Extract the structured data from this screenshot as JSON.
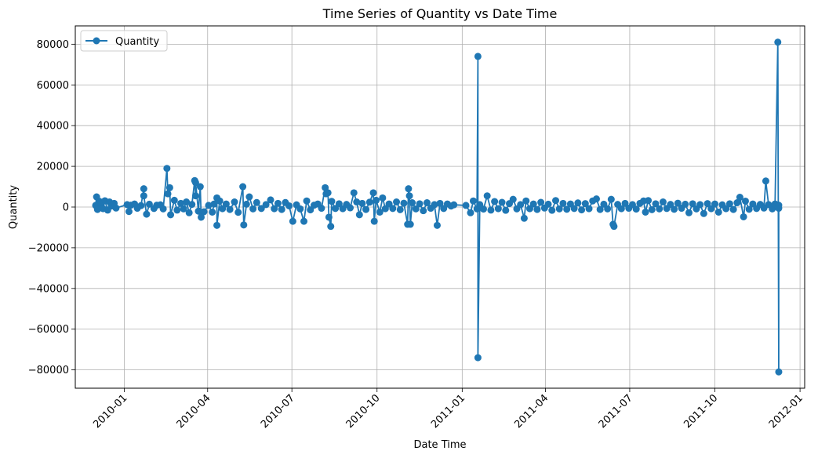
{
  "chart_data": {
    "type": "line",
    "title": "Time Series of Quantity vs Date Time",
    "xlabel": "Date Time",
    "ylabel": "Quantity",
    "x_tick_labels": [
      "2010-01",
      "2010-04",
      "2010-07",
      "2010-10",
      "2011-01",
      "2011-04",
      "2011-07",
      "2011-10",
      "2012-01"
    ],
    "y_tick_labels": [
      "−80000",
      "−60000",
      "−40000",
      "−20000",
      "0",
      "20000",
      "40000",
      "60000",
      "80000"
    ],
    "y_ticks": [
      -80000,
      -60000,
      -40000,
      -20000,
      0,
      20000,
      40000,
      60000,
      80000
    ],
    "xlim": [
      "2009-11-09",
      "2012-01-06"
    ],
    "ylim": [
      -89000,
      89000
    ],
    "grid": true,
    "legend_position": "top-left",
    "color": "#1f77b4",
    "series": [
      {
        "name": "Quantity",
        "marker": "circle",
        "points": [
          [
            "2009-12-01",
            800
          ],
          [
            "2009-12-02",
            5000
          ],
          [
            "2009-12-03",
            -1200
          ],
          [
            "2009-12-05",
            2800
          ],
          [
            "2009-12-07",
            1500
          ],
          [
            "2009-12-09",
            -800
          ],
          [
            "2009-12-11",
            3100
          ],
          [
            "2009-12-14",
            -1500
          ],
          [
            "2009-12-16",
            2500
          ],
          [
            "2009-12-18",
            500
          ],
          [
            "2009-12-21",
            1800
          ],
          [
            "2009-12-23",
            -500
          ],
          [
            "2010-01-04",
            1200
          ],
          [
            "2010-01-06",
            -2200
          ],
          [
            "2010-01-08",
            900
          ],
          [
            "2010-01-12",
            1500
          ],
          [
            "2010-01-15",
            -600
          ],
          [
            "2010-01-19",
            700
          ],
          [
            "2010-01-22",
            9000
          ],
          [
            "2010-01-22",
            5500
          ],
          [
            "2010-01-25",
            -3500
          ],
          [
            "2010-01-28",
            1400
          ],
          [
            "2010-02-02",
            -700
          ],
          [
            "2010-02-05",
            900
          ],
          [
            "2010-02-09",
            1100
          ],
          [
            "2010-02-12",
            -900
          ],
          [
            "2010-02-16",
            19000
          ],
          [
            "2010-02-17",
            6500
          ],
          [
            "2010-02-19",
            9500
          ],
          [
            "2010-02-20",
            -3800
          ],
          [
            "2010-02-24",
            3300
          ],
          [
            "2010-02-27",
            -1500
          ],
          [
            "2010-03-03",
            1800
          ],
          [
            "2010-03-06",
            -900
          ],
          [
            "2010-03-09",
            2500
          ],
          [
            "2010-03-12",
            -2800
          ],
          [
            "2010-03-15",
            1300
          ],
          [
            "2010-03-18",
            13000
          ],
          [
            "2010-03-19",
            5500
          ],
          [
            "2010-03-19",
            12000
          ],
          [
            "2010-03-22",
            -2000
          ],
          [
            "2010-03-24",
            10000
          ],
          [
            "2010-03-25",
            -5000
          ],
          [
            "2010-03-28",
            -2300
          ],
          [
            "2010-04-02",
            800
          ],
          [
            "2010-04-06",
            -2500
          ],
          [
            "2010-04-08",
            1500
          ],
          [
            "2010-04-11",
            4500
          ],
          [
            "2010-04-11",
            -9000
          ],
          [
            "2010-04-14",
            3000
          ],
          [
            "2010-04-17",
            -800
          ],
          [
            "2010-04-21",
            1500
          ],
          [
            "2010-04-25",
            -1200
          ],
          [
            "2010-04-30",
            2500
          ],
          [
            "2010-05-04",
            -2600
          ],
          [
            "2010-05-09",
            10000
          ],
          [
            "2010-05-10",
            -8800
          ],
          [
            "2010-05-13",
            1400
          ],
          [
            "2010-05-16",
            5000
          ],
          [
            "2010-05-20",
            -900
          ],
          [
            "2010-05-24",
            2200
          ],
          [
            "2010-05-29",
            -700
          ],
          [
            "2010-06-03",
            1200
          ],
          [
            "2010-06-08",
            3500
          ],
          [
            "2010-06-12",
            -800
          ],
          [
            "2010-06-16",
            1800
          ],
          [
            "2010-06-20",
            -1200
          ],
          [
            "2010-06-24",
            2200
          ],
          [
            "2010-06-28",
            600
          ],
          [
            "2010-07-02",
            -7000
          ],
          [
            "2010-07-06",
            1100
          ],
          [
            "2010-07-10",
            -900
          ],
          [
            "2010-07-14",
            -7000
          ],
          [
            "2010-07-17",
            3000
          ],
          [
            "2010-07-21",
            -1400
          ],
          [
            "2010-07-25",
            900
          ],
          [
            "2010-07-29",
            1500
          ],
          [
            "2010-08-02",
            -600
          ],
          [
            "2010-08-06",
            9500
          ],
          [
            "2010-08-07",
            6500
          ],
          [
            "2010-08-09",
            7000
          ],
          [
            "2010-08-10",
            -5000
          ],
          [
            "2010-08-12",
            -9500
          ],
          [
            "2010-08-13",
            2800
          ],
          [
            "2010-08-17",
            -700
          ],
          [
            "2010-08-21",
            1600
          ],
          [
            "2010-08-25",
            -800
          ],
          [
            "2010-08-29",
            1300
          ],
          [
            "2010-09-02",
            -400
          ],
          [
            "2010-09-06",
            7000
          ],
          [
            "2010-09-09",
            2500
          ],
          [
            "2010-09-12",
            -3800
          ],
          [
            "2010-09-15",
            1800
          ],
          [
            "2010-09-19",
            -1200
          ],
          [
            "2010-09-23",
            2400
          ],
          [
            "2010-09-27",
            7000
          ],
          [
            "2010-09-28",
            -7000
          ],
          [
            "2010-09-30",
            3300
          ],
          [
            "2010-10-04",
            -2500
          ],
          [
            "2010-10-07",
            4500
          ],
          [
            "2010-10-10",
            -800
          ],
          [
            "2010-10-14",
            1500
          ],
          [
            "2010-10-18",
            -700
          ],
          [
            "2010-10-22",
            2500
          ],
          [
            "2010-10-26",
            -1300
          ],
          [
            "2010-10-30",
            1900
          ],
          [
            "2010-11-03",
            -8500
          ],
          [
            "2010-11-04",
            9000
          ],
          [
            "2010-11-05",
            5500
          ],
          [
            "2010-11-06",
            -8500
          ],
          [
            "2010-11-08",
            2100
          ],
          [
            "2010-11-12",
            -900
          ],
          [
            "2010-11-16",
            1600
          ],
          [
            "2010-11-20",
            -1800
          ],
          [
            "2010-11-24",
            2100
          ],
          [
            "2010-11-28",
            -600
          ],
          [
            "2010-12-02",
            1200
          ],
          [
            "2010-12-05",
            -9000
          ],
          [
            "2010-12-08",
            1800
          ],
          [
            "2010-12-12",
            -700
          ],
          [
            "2010-12-16",
            1500
          ],
          [
            "2010-12-20",
            500
          ],
          [
            "2010-12-23",
            1100
          ],
          [
            "2011-01-05",
            800
          ],
          [
            "2011-01-10",
            -2800
          ],
          [
            "2011-01-13",
            3000
          ],
          [
            "2011-01-17",
            -900
          ],
          [
            "2011-01-18",
            74000
          ],
          [
            "2011-01-18",
            -74000
          ],
          [
            "2011-01-20",
            1200
          ],
          [
            "2011-01-24",
            -1000
          ],
          [
            "2011-01-28",
            5500
          ],
          [
            "2011-02-01",
            -1500
          ],
          [
            "2011-02-05",
            2700
          ],
          [
            "2011-02-09",
            -800
          ],
          [
            "2011-02-13",
            2300
          ],
          [
            "2011-02-17",
            -1600
          ],
          [
            "2011-02-21",
            1700
          ],
          [
            "2011-02-25",
            3800
          ],
          [
            "2011-03-01",
            -900
          ],
          [
            "2011-03-05",
            1200
          ],
          [
            "2011-03-09",
            -5500
          ],
          [
            "2011-03-11",
            3000
          ],
          [
            "2011-03-15",
            -800
          ],
          [
            "2011-03-19",
            1500
          ],
          [
            "2011-03-23",
            -1200
          ],
          [
            "2011-03-27",
            2300
          ],
          [
            "2011-03-31",
            -500
          ],
          [
            "2011-04-04",
            1400
          ],
          [
            "2011-04-08",
            -1600
          ],
          [
            "2011-04-12",
            3200
          ],
          [
            "2011-04-16",
            -900
          ],
          [
            "2011-04-20",
            1800
          ],
          [
            "2011-04-24",
            -1100
          ],
          [
            "2011-04-28",
            1500
          ],
          [
            "2011-05-02",
            -700
          ],
          [
            "2011-05-06",
            2000
          ],
          [
            "2011-05-10",
            -1400
          ],
          [
            "2011-05-14",
            1700
          ],
          [
            "2011-05-18",
            -800
          ],
          [
            "2011-05-22",
            3000
          ],
          [
            "2011-05-26",
            4000
          ],
          [
            "2011-05-30",
            -1200
          ],
          [
            "2011-06-03",
            1400
          ],
          [
            "2011-06-07",
            -900
          ],
          [
            "2011-06-11",
            3800
          ],
          [
            "2011-06-13",
            -8500
          ],
          [
            "2011-06-14",
            -9500
          ],
          [
            "2011-06-18",
            1300
          ],
          [
            "2011-06-22",
            -800
          ],
          [
            "2011-06-26",
            1800
          ],
          [
            "2011-06-30",
            -600
          ],
          [
            "2011-07-04",
            1200
          ],
          [
            "2011-07-08",
            -1000
          ],
          [
            "2011-07-12",
            1800
          ],
          [
            "2011-07-16",
            3000
          ],
          [
            "2011-07-18",
            -2500
          ],
          [
            "2011-07-21",
            3200
          ],
          [
            "2011-07-25",
            -1300
          ],
          [
            "2011-07-29",
            1600
          ],
          [
            "2011-08-02",
            -900
          ],
          [
            "2011-08-06",
            2500
          ],
          [
            "2011-08-10",
            -700
          ],
          [
            "2011-08-14",
            1300
          ],
          [
            "2011-08-18",
            -1100
          ],
          [
            "2011-08-22",
            1900
          ],
          [
            "2011-08-26",
            -600
          ],
          [
            "2011-08-30",
            1400
          ],
          [
            "2011-09-03",
            -2800
          ],
          [
            "2011-09-07",
            1600
          ],
          [
            "2011-09-11",
            -900
          ],
          [
            "2011-09-15",
            1200
          ],
          [
            "2011-09-19",
            -3200
          ],
          [
            "2011-09-23",
            1700
          ],
          [
            "2011-09-27",
            -800
          ],
          [
            "2011-10-01",
            1500
          ],
          [
            "2011-10-05",
            -2500
          ],
          [
            "2011-10-09",
            1100
          ],
          [
            "2011-10-13",
            -800
          ],
          [
            "2011-10-17",
            1600
          ],
          [
            "2011-10-21",
            -1200
          ],
          [
            "2011-10-25",
            2100
          ],
          [
            "2011-10-28",
            4800
          ],
          [
            "2011-11-01",
            -4800
          ],
          [
            "2011-11-03",
            2900
          ],
          [
            "2011-11-07",
            -1100
          ],
          [
            "2011-11-11",
            1500
          ],
          [
            "2011-11-15",
            -700
          ],
          [
            "2011-11-19",
            1300
          ],
          [
            "2011-11-23",
            -500
          ],
          [
            "2011-11-25",
            12800
          ],
          [
            "2011-11-28",
            1200
          ],
          [
            "2011-12-02",
            -900
          ],
          [
            "2011-12-05",
            1500
          ],
          [
            "2011-12-08",
            81000
          ],
          [
            "2011-12-09",
            -81000
          ],
          [
            "2011-12-09",
            900
          ],
          [
            "2011-12-09",
            -600
          ]
        ]
      }
    ]
  }
}
